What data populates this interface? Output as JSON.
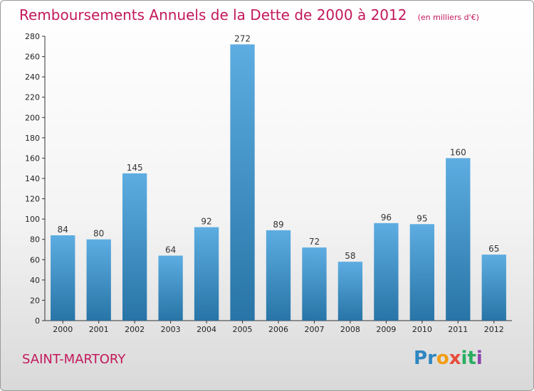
{
  "title": "Remboursements Annuels de la Dette de 2000 à 2012",
  "subtitle": "(en milliers d'€)",
  "place": "SAINT-MARTORY",
  "logo": {
    "letters": [
      "P",
      "r",
      "o",
      "x",
      "i",
      "t",
      "i"
    ],
    "colors": [
      "#2e86c1",
      "#2e86c1",
      "#f39c12",
      "#e74c3c",
      "#27ae60",
      "#27ae60",
      "#8e44ad"
    ]
  },
  "colors": {
    "bar_top": "#5dade2",
    "bar_bottom": "#2874a6",
    "accent": "#c2185b"
  },
  "chart_data": {
    "type": "bar",
    "categories": [
      "2000",
      "2001",
      "2002",
      "2003",
      "2004",
      "2005",
      "2006",
      "2007",
      "2008",
      "2009",
      "2010",
      "2011",
      "2012"
    ],
    "values": [
      84,
      80,
      145,
      64,
      92,
      272,
      89,
      72,
      58,
      96,
      95,
      160,
      65
    ],
    "yticks": [
      0,
      20,
      40,
      60,
      80,
      100,
      120,
      140,
      160,
      180,
      200,
      220,
      240,
      260,
      280
    ],
    "ylim": [
      0,
      280
    ],
    "grid": false
  }
}
